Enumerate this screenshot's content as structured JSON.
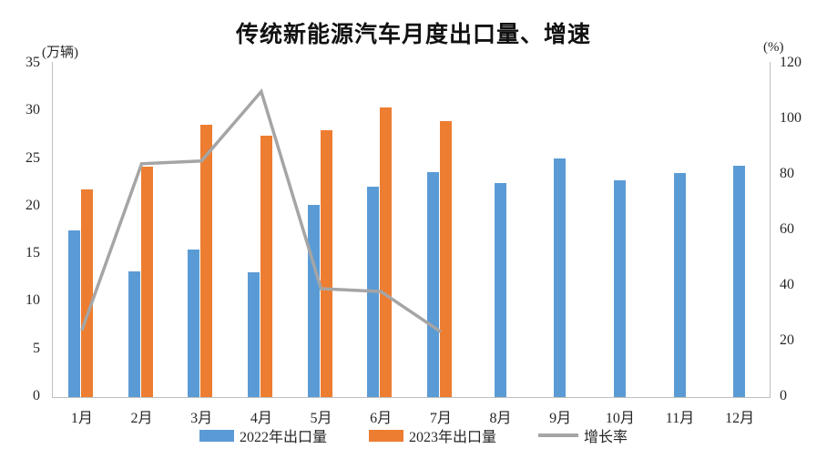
{
  "title": "传统新能源汽车月度出口量、增速",
  "colors": {
    "bar_2022": "#5B9BD5",
    "bar_2023": "#ED7D31",
    "growth_line": "#A5A5A5",
    "axis_line": "#BFBFBF",
    "text": "#262626",
    "title_text": "#111111"
  },
  "chart_data": {
    "type": "combo-bar-line",
    "title": "传统新能源汽车月度出口量、增速",
    "categories": [
      "1月",
      "2月",
      "3月",
      "4月",
      "5月",
      "6月",
      "7月",
      "8月",
      "9月",
      "10月",
      "11月",
      "12月"
    ],
    "left_axis": {
      "unit": "(万辆)",
      "ticks": [
        0,
        5,
        10,
        15,
        20,
        25,
        30,
        35
      ],
      "min": 0,
      "max": 35
    },
    "right_axis": {
      "unit": "(%)",
      "ticks": [
        0,
        20,
        40,
        60,
        80,
        100,
        120
      ],
      "min": 0,
      "max": 120
    },
    "grid": "off",
    "legend_position": "bottom",
    "series": [
      {
        "name": "2022年出口量",
        "type": "bar",
        "axis": "left",
        "color": "#5B9BD5",
        "values": [
          17.5,
          13.2,
          15.5,
          13.1,
          20.2,
          22.1,
          23.6,
          22.5,
          25.1,
          22.8,
          23.5,
          24.3
        ]
      },
      {
        "name": "2023年出口量",
        "type": "bar",
        "axis": "left",
        "color": "#ED7D31",
        "values": [
          21.8,
          24.2,
          28.6,
          27.4,
          28.0,
          30.4,
          29.0,
          null,
          null,
          null,
          null,
          null
        ]
      },
      {
        "name": "增长率",
        "type": "line",
        "axis": "right",
        "color": "#A5A5A5",
        "values": [
          24,
          84,
          85,
          110,
          39,
          38,
          23.5,
          null,
          null,
          null,
          null,
          null
        ]
      }
    ]
  }
}
